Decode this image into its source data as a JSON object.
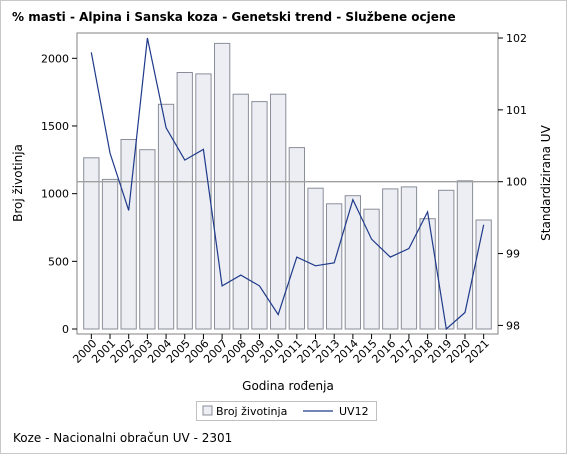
{
  "chart_data": {
    "type": "bar+line",
    "title": "% masti - Alpina i Sanska koza - Genetski trend - Službene ocjene",
    "xlabel": "Godina rođenja",
    "ylabel_left": "Broj životinja",
    "ylabel_right": "Standardizirana UV",
    "categories": [
      "2000",
      "2001",
      "2002",
      "2003",
      "2004",
      "2005",
      "2006",
      "2007",
      "2008",
      "2009",
      "2010",
      "2011",
      "2012",
      "2013",
      "2014",
      "2015",
      "2016",
      "2017",
      "2018",
      "2019",
      "2020",
      "2021"
    ],
    "series": [
      {
        "name": "Broj životinja",
        "kind": "bar",
        "axis": "left",
        "values": [
          1265,
          1105,
          1400,
          1325,
          1660,
          1895,
          1885,
          2110,
          1735,
          1680,
          1735,
          1340,
          1040,
          925,
          985,
          885,
          1035,
          1050,
          815,
          1025,
          1095,
          805
        ]
      },
      {
        "name": "UV12",
        "kind": "line",
        "axis": "right",
        "values": [
          101.8,
          100.4,
          99.6,
          102.0,
          100.75,
          100.3,
          100.45,
          98.55,
          98.7,
          98.55,
          98.15,
          98.95,
          98.83,
          98.87,
          99.75,
          99.2,
          98.95,
          99.07,
          99.58,
          97.95,
          98.18,
          99.4
        ]
      }
    ],
    "ylim_left": [
      0,
      2150
    ],
    "yticks_left": [
      0,
      500,
      1000,
      1500,
      2000
    ],
    "yticks_left_labels": [
      "0",
      "500",
      "1000",
      "1500",
      "2000"
    ],
    "ylim_right": [
      97.95,
      102.0
    ],
    "yticks_right": [
      98,
      99,
      100,
      101,
      102
    ],
    "yticks_right_labels": [
      "98",
      "99",
      "100",
      "101",
      "102"
    ],
    "reference_line_right": 100,
    "grid": false,
    "legend_placement": "bottom",
    "colors": {
      "bar_fill": "#eceef4",
      "bar_stroke": "#8a8e99",
      "line": "#1f3a8a",
      "ref_line": "#a0a0a0"
    }
  },
  "legend": {
    "bars_label": "Broj životinja",
    "line_label": "UV12"
  },
  "footer": "Koze - Nacionalni obračun UV - 2301"
}
